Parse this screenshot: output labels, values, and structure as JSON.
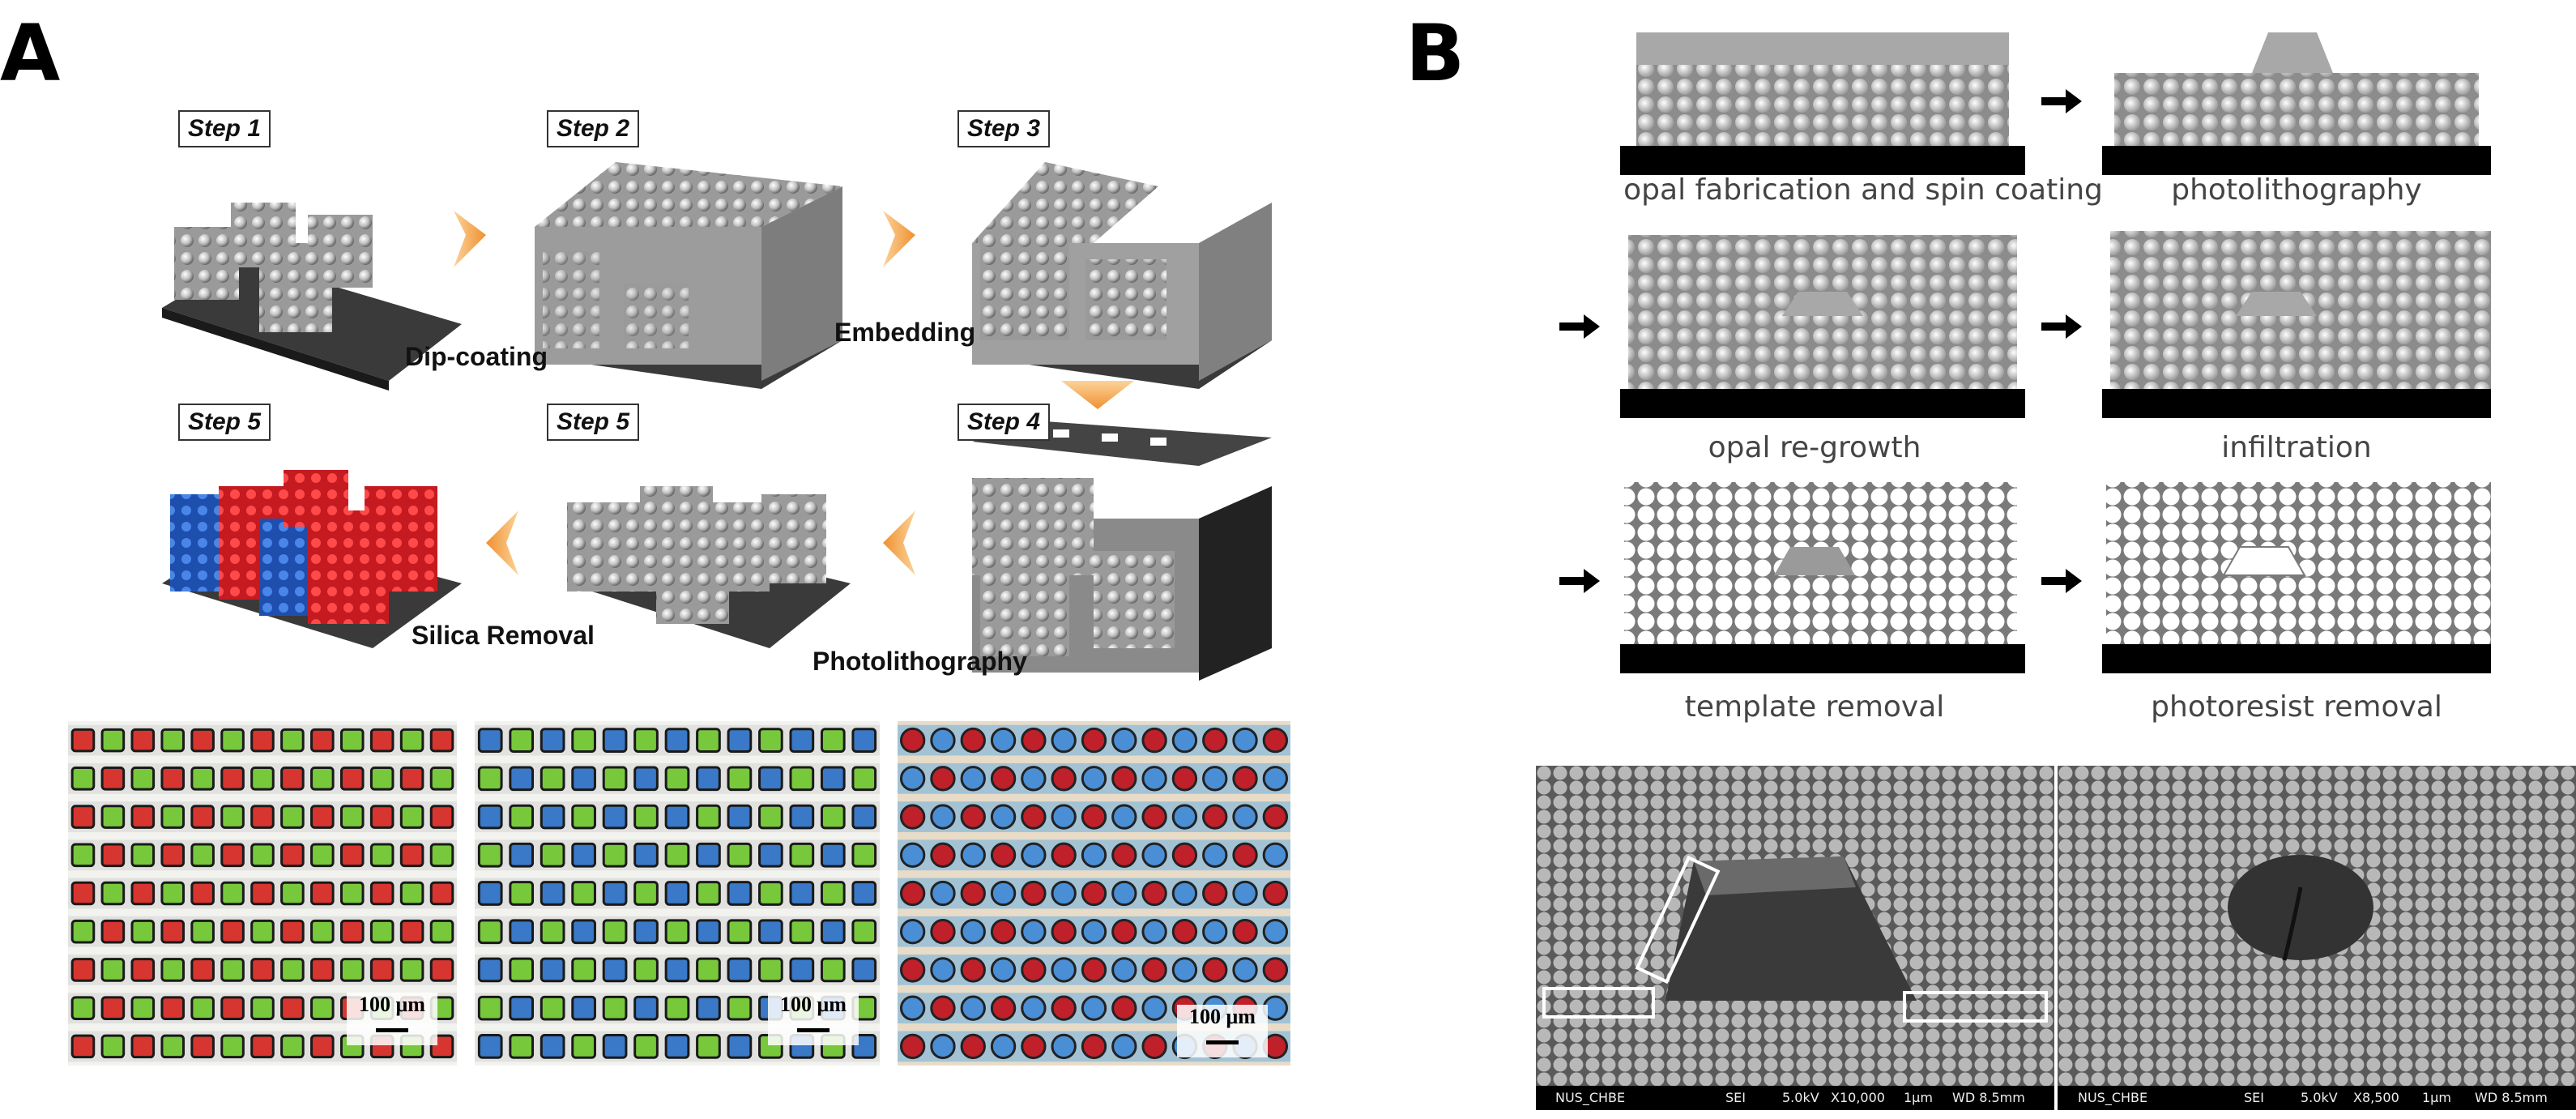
{
  "panels": {
    "a": "A",
    "b": "B"
  },
  "panel_a": {
    "steps": [
      "Step 1",
      "Step 2",
      "Step 3",
      "Step 4",
      "Step 5",
      "Step 5"
    ],
    "processes": [
      "Dip-coating",
      "Embedding",
      "Photolithography",
      "Silica Removal"
    ],
    "micrographs": [
      {
        "scale": "100 μm",
        "colors": [
          "#d7352f",
          "#78c83c"
        ]
      },
      {
        "scale": "100 μm",
        "colors": [
          "#3a78c8",
          "#78c83c"
        ]
      },
      {
        "scale": "100 μm",
        "colors": [
          "#c0202a",
          "#4a8fd6"
        ]
      }
    ]
  },
  "panel_b": {
    "captions": [
      "opal fabrication and spin coating",
      "photolithography",
      "opal re-growth",
      "infiltration",
      "template removal",
      "photoresist removal"
    ],
    "sem": [
      {
        "left": "NUS_CHBE",
        "mode": "SEI",
        "kv": "5.0kV",
        "mag": "X10,000",
        "scale": "1μm",
        "wd": "WD 8.5mm"
      },
      {
        "left": "NUS_CHBE",
        "mode": "SEI",
        "kv": "5.0kV",
        "mag": "X8,500",
        "scale": "1μm",
        "wd": "WD 8.5mm"
      }
    ]
  },
  "colors": {
    "red": "#d7262b",
    "blue": "#2a63c8",
    "green": "#78c83c",
    "arrow": "#f0a040",
    "substrate": "#222222",
    "sphere_gray": "#bdbdbd"
  }
}
